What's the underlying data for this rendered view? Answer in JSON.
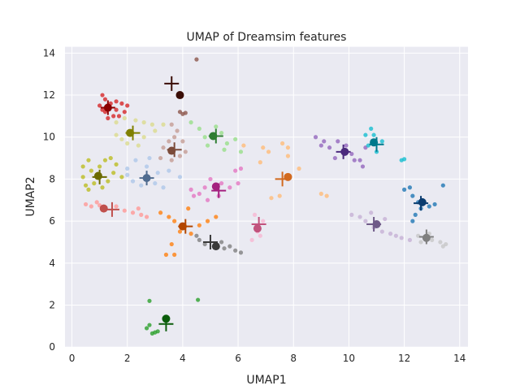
{
  "chart_data": {
    "type": "scatter",
    "title": "UMAP of Dreamsim features",
    "xlabel": "UMAP1",
    "ylabel": "UMAP2",
    "xlim": [
      -0.25,
      14.3
    ],
    "ylim": [
      0,
      14.3
    ],
    "xticks": [
      "0",
      "2",
      "4",
      "6",
      "8",
      "10",
      "12",
      "14"
    ],
    "xtick_values": [
      0,
      2,
      4,
      6,
      8,
      10,
      12,
      14
    ],
    "yticks": [
      "0",
      "2",
      "4",
      "6",
      "8",
      "10",
      "12",
      "14"
    ],
    "ytick_values": [
      0,
      2,
      4,
      6,
      8,
      10,
      12,
      14
    ],
    "grid": true,
    "background": "#eaeaf2",
    "clusters": [
      {
        "color": "#d62728",
        "dark": "#8b0000",
        "centroid": [
          1.3,
          11.4
        ],
        "cross": [
          1.3,
          11.4
        ],
        "points": [
          [
            1.1,
            12.0
          ],
          [
            1.2,
            11.8
          ],
          [
            1.0,
            11.5
          ],
          [
            1.4,
            11.6
          ],
          [
            1.6,
            11.3
          ],
          [
            1.8,
            11.6
          ],
          [
            1.9,
            11.2
          ],
          [
            1.5,
            11.0
          ],
          [
            1.2,
            11.2
          ],
          [
            1.7,
            11.0
          ],
          [
            1.3,
            10.9
          ],
          [
            2.0,
            11.5
          ],
          [
            1.1,
            11.3
          ],
          [
            1.6,
            11.7
          ]
        ]
      },
      {
        "color": "#8c564b",
        "dark": "#3a0d06",
        "centroid": [
          3.9,
          12.0
        ],
        "cross": [
          3.6,
          12.55
        ],
        "points": [
          [
            4.5,
            13.7
          ],
          [
            3.9,
            11.2
          ],
          [
            4.0,
            11.1
          ],
          [
            4.1,
            11.15
          ]
        ]
      },
      {
        "color": "#dbdb8d",
        "dark": "#808000",
        "centroid": [
          2.1,
          10.2
        ],
        "cross": [
          2.2,
          10.2
        ],
        "points": [
          [
            1.6,
            10.7
          ],
          [
            1.9,
            10.9
          ],
          [
            2.3,
            10.8
          ],
          [
            2.6,
            10.7
          ],
          [
            2.9,
            10.6
          ],
          [
            1.6,
            10.1
          ],
          [
            1.8,
            9.9
          ],
          [
            2.6,
            10.0
          ],
          [
            3.0,
            10.3
          ],
          [
            2.4,
            9.6
          ],
          [
            3.3,
            10.6
          ],
          [
            2.0,
            9.7
          ]
        ]
      },
      {
        "color": "#c49c94",
        "dark": "#7b4b3a",
        "centroid": [
          3.6,
          9.35
        ],
        "cross": [
          3.7,
          9.4
        ],
        "points": [
          [
            3.6,
            10.6
          ],
          [
            3.8,
            10.3
          ],
          [
            3.7,
            10.0
          ],
          [
            3.5,
            9.8
          ],
          [
            3.3,
            9.5
          ],
          [
            3.9,
            9.1
          ],
          [
            4.1,
            9.3
          ],
          [
            3.2,
            9.0
          ],
          [
            3.6,
            8.9
          ],
          [
            4.0,
            9.8
          ]
        ]
      },
      {
        "color": "#98df8a",
        "dark": "#2e7d32",
        "centroid": [
          5.1,
          10.05
        ],
        "cross": [
          5.2,
          10.05
        ],
        "points": [
          [
            4.3,
            10.7
          ],
          [
            4.6,
            10.4
          ],
          [
            4.8,
            10.0
          ],
          [
            5.4,
            10.2
          ],
          [
            5.6,
            9.7
          ],
          [
            5.9,
            9.9
          ],
          [
            4.9,
            9.6
          ],
          [
            5.2,
            10.5
          ],
          [
            6.1,
            9.3
          ],
          [
            5.5,
            9.4
          ]
        ]
      },
      {
        "color": "#bcbd22",
        "dark": "#6b6b00",
        "centroid": [
          0.95,
          8.15
        ],
        "cross": [
          1.0,
          8.1
        ],
        "points": [
          [
            0.4,
            8.6
          ],
          [
            0.4,
            8.1
          ],
          [
            0.5,
            7.7
          ],
          [
            0.6,
            7.5
          ],
          [
            0.8,
            7.8
          ],
          [
            1.0,
            8.6
          ],
          [
            1.2,
            8.9
          ],
          [
            1.4,
            9.0
          ],
          [
            1.6,
            8.7
          ],
          [
            1.5,
            8.3
          ],
          [
            1.3,
            7.9
          ],
          [
            0.7,
            8.4
          ],
          [
            1.8,
            8.1
          ],
          [
            1.1,
            7.6
          ],
          [
            0.6,
            8.9
          ]
        ]
      },
      {
        "color": "#aec7e8",
        "dark": "#4f6b8f",
        "centroid": [
          2.7,
          8.05
        ],
        "cross": [
          2.7,
          8.05
        ],
        "points": [
          [
            2.0,
            8.5
          ],
          [
            2.3,
            8.9
          ],
          [
            2.7,
            8.6
          ],
          [
            3.1,
            8.3
          ],
          [
            3.5,
            8.4
          ],
          [
            2.2,
            7.9
          ],
          [
            2.5,
            7.7
          ],
          [
            3.0,
            7.8
          ],
          [
            3.3,
            7.6
          ],
          [
            3.9,
            8.1
          ],
          [
            2.8,
            9.0
          ],
          [
            2.0,
            8.2
          ]
        ]
      },
      {
        "color": "#e377c2",
        "dark": "#a4217f",
        "centroid": [
          5.2,
          7.65
        ],
        "cross": [
          5.3,
          7.45
        ],
        "points": [
          [
            4.3,
            7.5
          ],
          [
            4.6,
            7.3
          ],
          [
            4.9,
            7.0
          ],
          [
            5.3,
            7.2
          ],
          [
            5.7,
            7.6
          ],
          [
            6.0,
            7.8
          ],
          [
            5.9,
            8.4
          ],
          [
            5.4,
            7.8
          ],
          [
            4.8,
            7.6
          ],
          [
            6.1,
            8.5
          ],
          [
            5.0,
            8.0
          ],
          [
            4.4,
            7.2
          ]
        ]
      },
      {
        "color": "#ff9896",
        "dark": "#c0504d",
        "centroid": [
          1.15,
          6.6
        ],
        "cross": [
          1.45,
          6.55
        ],
        "points": [
          [
            0.5,
            6.8
          ],
          [
            0.7,
            6.7
          ],
          [
            1.0,
            6.75
          ],
          [
            1.6,
            6.7
          ],
          [
            1.9,
            6.5
          ],
          [
            2.2,
            6.4
          ],
          [
            2.5,
            6.3
          ],
          [
            2.7,
            6.2
          ],
          [
            2.4,
            6.6
          ],
          [
            0.9,
            6.9
          ]
        ]
      },
      {
        "color": "#ff7f0e",
        "dark": "#b34700",
        "centroid": [
          4.0,
          5.75
        ],
        "cross": [
          4.1,
          5.75
        ],
        "points": [
          [
            3.2,
            6.4
          ],
          [
            3.5,
            6.2
          ],
          [
            3.7,
            6.0
          ],
          [
            3.9,
            5.5
          ],
          [
            4.3,
            5.4
          ],
          [
            4.6,
            5.8
          ],
          [
            4.9,
            6.0
          ],
          [
            5.2,
            6.2
          ],
          [
            3.6,
            4.9
          ],
          [
            3.7,
            4.4
          ],
          [
            3.4,
            4.4
          ],
          [
            4.2,
            6.6
          ]
        ]
      },
      {
        "color": "#7f7f7f",
        "dark": "#3a3a3a",
        "centroid": [
          5.2,
          4.8
        ],
        "cross": [
          5.0,
          5.0
        ],
        "points": [
          [
            4.6,
            5.1
          ],
          [
            4.8,
            4.9
          ],
          [
            5.4,
            5.0
          ],
          [
            5.7,
            4.8
          ],
          [
            5.9,
            4.6
          ],
          [
            6.1,
            4.5
          ],
          [
            5.5,
            4.7
          ],
          [
            4.5,
            5.3
          ]
        ]
      },
      {
        "color": "#2ca02c",
        "dark": "#0b5c0b",
        "centroid": [
          3.4,
          1.35
        ],
        "cross": [
          3.4,
          1.1
        ],
        "points": [
          [
            2.8,
            2.2
          ],
          [
            2.8,
            1.05
          ],
          [
            3.0,
            0.7
          ],
          [
            2.9,
            0.65
          ],
          [
            3.1,
            0.75
          ],
          [
            4.55,
            2.25
          ],
          [
            2.7,
            0.9
          ]
        ]
      },
      {
        "color": "#ffbb78",
        "dark": "#d2691e",
        "centroid": [
          7.8,
          8.1
        ],
        "cross": [
          7.6,
          8.0
        ],
        "points": [
          [
            6.2,
            9.6
          ],
          [
            6.9,
            9.5
          ],
          [
            7.1,
            9.3
          ],
          [
            7.6,
            9.7
          ],
          [
            7.8,
            9.5
          ],
          [
            7.8,
            9.1
          ],
          [
            6.8,
            8.8
          ],
          [
            7.5,
            7.2
          ],
          [
            7.2,
            7.1
          ],
          [
            8.2,
            8.5
          ],
          [
            9.0,
            7.3
          ],
          [
            9.2,
            7.2
          ]
        ]
      },
      {
        "color": "#f7b6d2",
        "dark": "#c1537d",
        "centroid": [
          6.7,
          5.65
        ],
        "cross": [
          6.75,
          5.85
        ],
        "points": [
          [
            6.5,
            5.1
          ],
          [
            6.7,
            5.5
          ],
          [
            6.9,
            6.0
          ],
          [
            6.6,
            6.3
          ],
          [
            6.8,
            5.3
          ]
        ]
      },
      {
        "color": "#9467bd",
        "dark": "#4b2a7d",
        "centroid": [
          9.85,
          9.3
        ],
        "cross": [
          9.8,
          9.3
        ],
        "points": [
          [
            8.8,
            10.0
          ],
          [
            9.1,
            9.8
          ],
          [
            9.3,
            9.5
          ],
          [
            9.6,
            9.8
          ],
          [
            9.9,
            9.6
          ],
          [
            10.1,
            9.2
          ],
          [
            10.4,
            8.9
          ],
          [
            10.5,
            8.6
          ],
          [
            10.2,
            8.9
          ],
          [
            9.5,
            9.0
          ],
          [
            10.6,
            9.5
          ],
          [
            9.0,
            9.6
          ]
        ]
      },
      {
        "color": "#17becf",
        "dark": "#00798c",
        "centroid": [
          10.9,
          9.75
        ],
        "cross": [
          11.0,
          9.65
        ],
        "points": [
          [
            10.6,
            10.1
          ],
          [
            10.8,
            10.4
          ],
          [
            10.9,
            10.1
          ],
          [
            11.2,
            9.8
          ],
          [
            11.0,
            9.3
          ],
          [
            10.7,
            9.6
          ],
          [
            11.9,
            8.9
          ],
          [
            12.0,
            8.95
          ]
        ]
      },
      {
        "color": "#1f77b4",
        "dark": "#0b3d70",
        "centroid": [
          12.65,
          6.9
        ],
        "cross": [
          12.6,
          6.85
        ],
        "points": [
          [
            12.0,
            7.5
          ],
          [
            12.3,
            7.2
          ],
          [
            12.5,
            6.9
          ],
          [
            12.6,
            6.6
          ],
          [
            12.4,
            6.3
          ],
          [
            12.3,
            6.0
          ],
          [
            12.9,
            6.7
          ],
          [
            13.1,
            6.8
          ],
          [
            13.4,
            7.7
          ],
          [
            12.2,
            7.6
          ]
        ]
      },
      {
        "color": "#c5b0d5",
        "dark": "#6f5a88",
        "centroid": [
          11.0,
          5.85
        ],
        "cross": [
          10.9,
          5.85
        ],
        "points": [
          [
            10.1,
            6.3
          ],
          [
            10.4,
            6.2
          ],
          [
            10.6,
            6.0
          ],
          [
            10.9,
            5.7
          ],
          [
            11.2,
            5.5
          ],
          [
            11.5,
            5.4
          ],
          [
            11.7,
            5.3
          ],
          [
            11.3,
            6.1
          ],
          [
            10.8,
            6.4
          ],
          [
            11.9,
            5.2
          ],
          [
            12.2,
            5.1
          ]
        ]
      },
      {
        "color": "#c7c7c7",
        "dark": "#7f7f7f",
        "centroid": [
          12.8,
          5.2
        ],
        "cross": [
          12.8,
          5.25
        ],
        "points": [
          [
            12.5,
            5.3
          ],
          [
            12.6,
            5.0
          ],
          [
            13.0,
            5.1
          ],
          [
            13.3,
            5.0
          ],
          [
            13.5,
            4.9
          ],
          [
            13.4,
            4.8
          ],
          [
            12.9,
            5.4
          ]
        ]
      }
    ]
  }
}
